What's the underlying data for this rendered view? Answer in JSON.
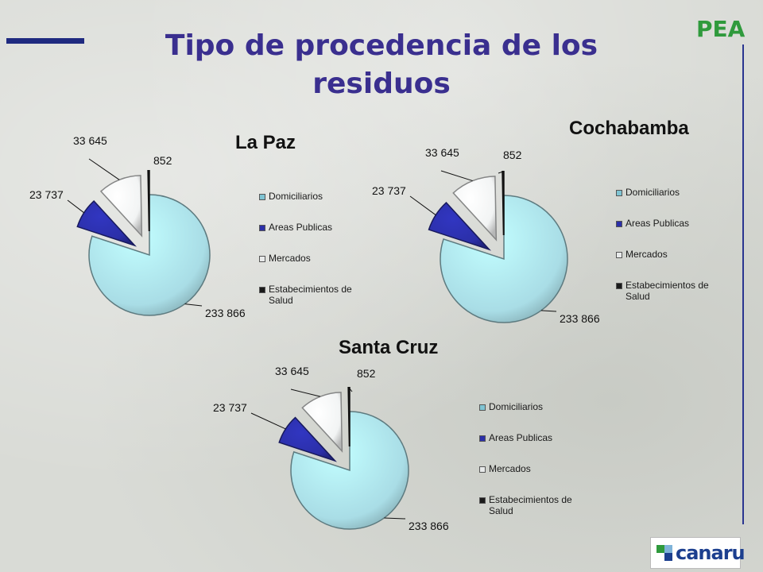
{
  "header": {
    "title": "Tipo de procedencia de los residuos",
    "brand": "PEA"
  },
  "logo": {
    "text": "canaru"
  },
  "colors": {
    "Domiciliarios": "#a9dde6",
    "Areas Publicas": "#2b2fa8",
    "Mercados": "#f2f4f4",
    "Estabecimientos de Salud": "#1a1a1a",
    "title": "#3a2f8f",
    "brand": "#2f9a3c",
    "accent": "#1f2a80"
  },
  "chart_data": [
    {
      "type": "pie",
      "title": "La Paz",
      "categories": [
        "Domiciliarios",
        "Areas Publicas",
        "Mercados",
        "Estabecimientos de Salud"
      ],
      "values": [
        233866,
        23737,
        33645,
        852
      ],
      "value_labels": [
        "233 866",
        "23 737",
        "33 645",
        "852"
      ],
      "legend": [
        "Domiciliarios",
        "Areas Publicas",
        "Mercados",
        "Estabecimientos de Salud"
      ],
      "legend_placement": "right",
      "style": "3d-exploded"
    },
    {
      "type": "pie",
      "title": "Cochabamba",
      "categories": [
        "Domiciliarios",
        "Areas Publicas",
        "Mercados",
        "Estabecimientos de Salud"
      ],
      "values": [
        233866,
        23737,
        33645,
        852
      ],
      "value_labels": [
        "233 866",
        "23 737",
        "33 645",
        "852"
      ],
      "legend": [
        "Domiciliarios",
        "Areas Publicas",
        "Mercados",
        "Estabecimientos de Salud"
      ],
      "legend_placement": "right",
      "style": "3d-exploded"
    },
    {
      "type": "pie",
      "title": "Santa Cruz",
      "categories": [
        "Domiciliarios",
        "Areas Publicas",
        "Mercados",
        "Estabecimientos de Salud"
      ],
      "values": [
        233866,
        23737,
        33645,
        852
      ],
      "value_labels": [
        "233 866",
        "23 737",
        "33 645",
        "852"
      ],
      "legend": [
        "Domiciliarios",
        "Areas Publicas",
        "Mercados",
        "Estabecimientos de Salud"
      ],
      "legend_placement": "right",
      "style": "3d-exploded"
    }
  ]
}
